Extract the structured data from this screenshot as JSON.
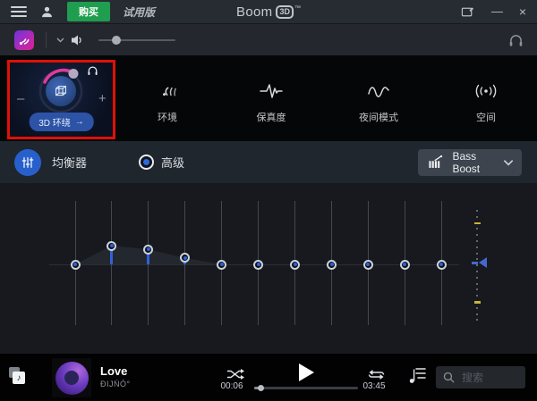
{
  "titlebar": {
    "buy": "购买",
    "trial": "试用版",
    "logo_text": "Boom",
    "logo_badge": "3D",
    "logo_tm": "™",
    "minimize": "—",
    "close": "×"
  },
  "volume_bar": {
    "level": 0.23
  },
  "effects": {
    "minus": "–",
    "plus": "+",
    "surround_label": "3D 环绕",
    "surround_arrow": "→",
    "options": [
      {
        "name": "ambience",
        "label": "环境"
      },
      {
        "name": "fidelity",
        "label": "保真度"
      },
      {
        "name": "night-mode",
        "label": "夜间模式"
      },
      {
        "name": "spatial",
        "label": "空间"
      }
    ]
  },
  "equalizer": {
    "title": "均衡器",
    "mode": "高级",
    "preset": "Bass Boost",
    "bands_gain_db": [
      0,
      5,
      4,
      1.7,
      0,
      0,
      0,
      0,
      0,
      0,
      0
    ],
    "preamp_db": 0
  },
  "player": {
    "title": "Love",
    "artist": "ĐIJŃÓ°",
    "elapsed": "00:06",
    "duration": "03:45",
    "progress": 0.06,
    "search_placeholder": "搜索"
  },
  "colors": {
    "accent_blue": "#2f62d8",
    "buy_green": "#1e9e4e",
    "annotation_red": "#e01008",
    "knob_arc_pink": "#e03a9c",
    "preamp_tick_yellow": "#c9b23c"
  }
}
